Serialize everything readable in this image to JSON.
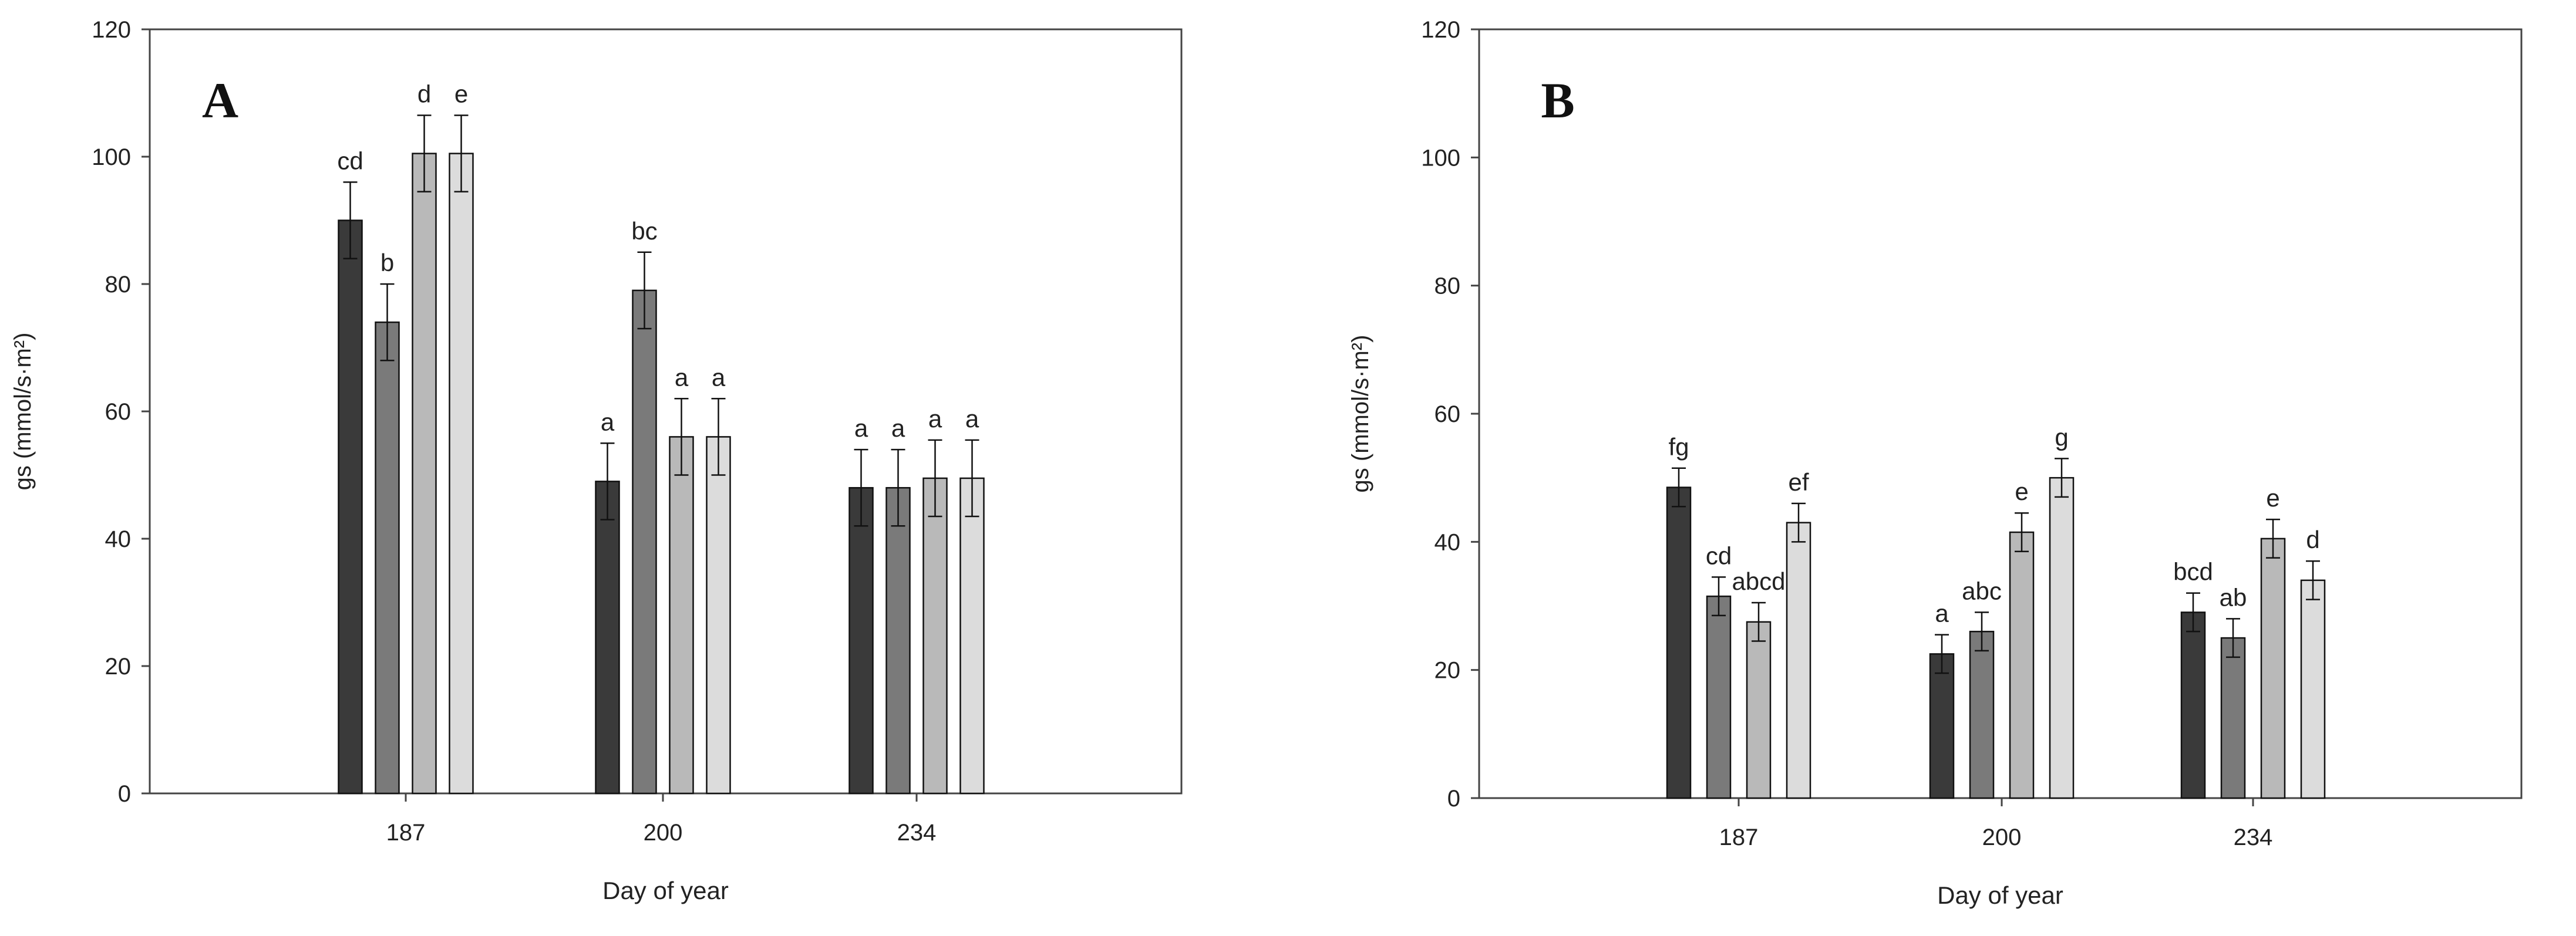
{
  "colors": {
    "series": [
      "#3a3a3a",
      "#7a7a7a",
      "#b9b9b9",
      "#dcdcdc"
    ],
    "axis": "#444444",
    "background": "#ffffff"
  },
  "chart_data": [
    {
      "type": "bar",
      "panel_label": "A",
      "xlabel": "Day of year",
      "ylabel": "gs (mmol/s·m²)",
      "ylim": [
        0,
        120
      ],
      "yticks": [
        0,
        20,
        40,
        60,
        80,
        100,
        120
      ],
      "categories": [
        "187",
        "200",
        "234"
      ],
      "grid": false,
      "series": [
        {
          "values": [
            90,
            49,
            48
          ],
          "errors": [
            6,
            6,
            6
          ],
          "letters": [
            "cd",
            "a",
            "a"
          ]
        },
        {
          "values": [
            74,
            79,
            48
          ],
          "errors": [
            6,
            6,
            6
          ],
          "letters": [
            "b",
            "bc",
            "a"
          ]
        },
        {
          "values": [
            100.5,
            56,
            49.5
          ],
          "errors": [
            6,
            6,
            6
          ],
          "letters": [
            "d",
            "a",
            "a"
          ]
        },
        {
          "values": [
            100.5,
            56,
            49.5
          ],
          "errors": [
            6,
            6,
            6
          ],
          "letters": [
            "e",
            "a",
            "a"
          ]
        }
      ]
    },
    {
      "type": "bar",
      "panel_label": "B",
      "xlabel": "Day of year",
      "ylabel": "gs (mmol/s·m²)",
      "ylim": [
        0,
        120
      ],
      "yticks": [
        0,
        20,
        40,
        60,
        80,
        100,
        120
      ],
      "categories": [
        "187",
        "200",
        "234"
      ],
      "grid": false,
      "series": [
        {
          "values": [
            48.5,
            22.5,
            29
          ],
          "errors": [
            3,
            3,
            3
          ],
          "letters": [
            "fg",
            "a",
            "bcd"
          ]
        },
        {
          "values": [
            31.5,
            26,
            25
          ],
          "errors": [
            3,
            3,
            3
          ],
          "letters": [
            "cd",
            "abc",
            "ab"
          ]
        },
        {
          "values": [
            27.5,
            41.5,
            40.5
          ],
          "errors": [
            3,
            3,
            3
          ],
          "letters": [
            "abcd",
            "e",
            "e"
          ]
        },
        {
          "values": [
            43,
            50,
            34
          ],
          "errors": [
            3,
            3,
            3
          ],
          "letters": [
            "ef",
            "g",
            "d"
          ]
        }
      ]
    }
  ]
}
